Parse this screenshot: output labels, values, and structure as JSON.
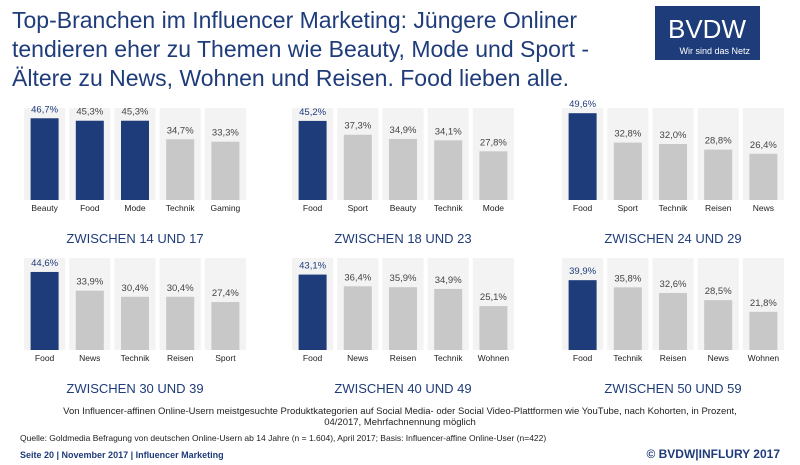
{
  "title_lines": [
    "Top-Branchen im Influencer Marketing: Jüngere Onliner",
    "tendieren eher zu Themen wie Beauty, Mode und Sport -",
    "Ältere zu News, Wohnen und Reisen. Food lieben alle."
  ],
  "logo": "BVDW",
  "logo_tagline": "Wir sind das Netz",
  "note_lines": [
    "Von Influencer-affinen Online-Usern meistgesuchte Produktkategorien auf Social Media- oder Social Video-Plattformen wie YouTube, nach Kohorten, in Prozent,",
    "04/2017, Mehrfachnennung möglich"
  ],
  "source": "Quelle: Goldmedia Befragung von deutschen Online-Usern ab 14 Jahre (n = 1.604), April 2017; Basis: Influencer-affine Online-User (n=422)",
  "footer_left": "Seite 20 | November 2017 | Influencer Marketing",
  "footer_right": "© BVDW|INFLURY 2017",
  "chart_data": [
    {
      "type": "bar",
      "title": "ZWISCHEN 14 UND 17",
      "categories": [
        "Beauty",
        "Food",
        "Mode",
        "Technik",
        "Gaming"
      ],
      "values": [
        46.7,
        45.3,
        45.3,
        34.7,
        33.3
      ],
      "value_labels": [
        "46,7%",
        "45,3%",
        "45,3%",
        "34,7%",
        "33,3%"
      ],
      "colors": [
        "#1f3c7a",
        "#1f3c7a",
        "#1f3c7a",
        "#c8c8c8",
        "#c8c8c8"
      ]
    },
    {
      "type": "bar",
      "title": "ZWISCHEN 18 UND 23",
      "categories": [
        "Food",
        "Sport",
        "Beauty",
        "Technik",
        "Mode"
      ],
      "values": [
        45.2,
        37.3,
        34.9,
        34.1,
        27.8
      ],
      "value_labels": [
        "45,2%",
        "37,3%",
        "34,9%",
        "34,1%",
        "27,8%"
      ],
      "colors": [
        "#1f3c7a",
        "#c8c8c8",
        "#c8c8c8",
        "#c8c8c8",
        "#c8c8c8"
      ]
    },
    {
      "type": "bar",
      "title": "ZWISCHEN 24 UND 29",
      "categories": [
        "Food",
        "Sport",
        "Technik",
        "Reisen",
        "News"
      ],
      "values": [
        49.6,
        32.8,
        32.0,
        28.8,
        26.4
      ],
      "value_labels": [
        "49,6%",
        "32,8%",
        "32,0%",
        "28,8%",
        "26,4%"
      ],
      "colors": [
        "#1f3c7a",
        "#c8c8c8",
        "#c8c8c8",
        "#c8c8c8",
        "#c8c8c8"
      ]
    },
    {
      "type": "bar",
      "title": "ZWISCHEN 30 UND 39",
      "categories": [
        "Food",
        "News",
        "Technik",
        "Reisen",
        "Sport"
      ],
      "values": [
        44.6,
        33.9,
        30.4,
        30.4,
        27.4
      ],
      "value_labels": [
        "44,6%",
        "33,9%",
        "30,4%",
        "30,4%",
        "27,4%"
      ],
      "colors": [
        "#1f3c7a",
        "#c8c8c8",
        "#c8c8c8",
        "#c8c8c8",
        "#c8c8c8"
      ]
    },
    {
      "type": "bar",
      "title": "ZWISCHEN 40 UND 49",
      "categories": [
        "Food",
        "News",
        "Reisen",
        "Technik",
        "Wohnen"
      ],
      "values": [
        43.1,
        36.4,
        35.9,
        34.9,
        25.1
      ],
      "value_labels": [
        "43,1%",
        "36,4%",
        "35,9%",
        "34,9%",
        "25,1%"
      ],
      "colors": [
        "#1f3c7a",
        "#c8c8c8",
        "#c8c8c8",
        "#c8c8c8",
        "#c8c8c8"
      ]
    },
    {
      "type": "bar",
      "title": "ZWISCHEN 50 UND 59",
      "categories": [
        "Food",
        "Technik",
        "Reisen",
        "News",
        "Wohnen"
      ],
      "values": [
        39.9,
        35.8,
        32.6,
        28.5,
        21.8
      ],
      "value_labels": [
        "39,9%",
        "35,8%",
        "32,6%",
        "28,5%",
        "21,8%"
      ],
      "colors": [
        "#1f3c7a",
        "#c8c8c8",
        "#c8c8c8",
        "#c8c8c8",
        "#c8c8c8"
      ]
    }
  ]
}
